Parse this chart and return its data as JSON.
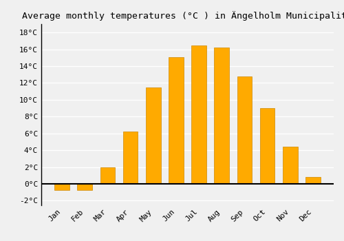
{
  "title": "Average monthly temperatures (°C ) in Ängelholm Municipality",
  "months": [
    "Jan",
    "Feb",
    "Mar",
    "Apr",
    "May",
    "Jun",
    "Jul",
    "Aug",
    "Sep",
    "Oct",
    "Nov",
    "Dec"
  ],
  "values": [
    -0.7,
    -0.7,
    2.0,
    6.2,
    11.5,
    15.1,
    16.5,
    16.2,
    12.8,
    9.0,
    4.4,
    0.8
  ],
  "bar_color": "#FFAA00",
  "bar_edge_color": "#CC8800",
  "ylim": [
    -2.5,
    19
  ],
  "yticks": [
    -2,
    0,
    2,
    4,
    6,
    8,
    10,
    12,
    14,
    16,
    18
  ],
  "background_color": "#F0F0F0",
  "grid_color": "#FFFFFF",
  "title_fontsize": 9.5,
  "tick_fontsize": 8,
  "zero_line_color": "#000000",
  "spine_color": "#000000"
}
